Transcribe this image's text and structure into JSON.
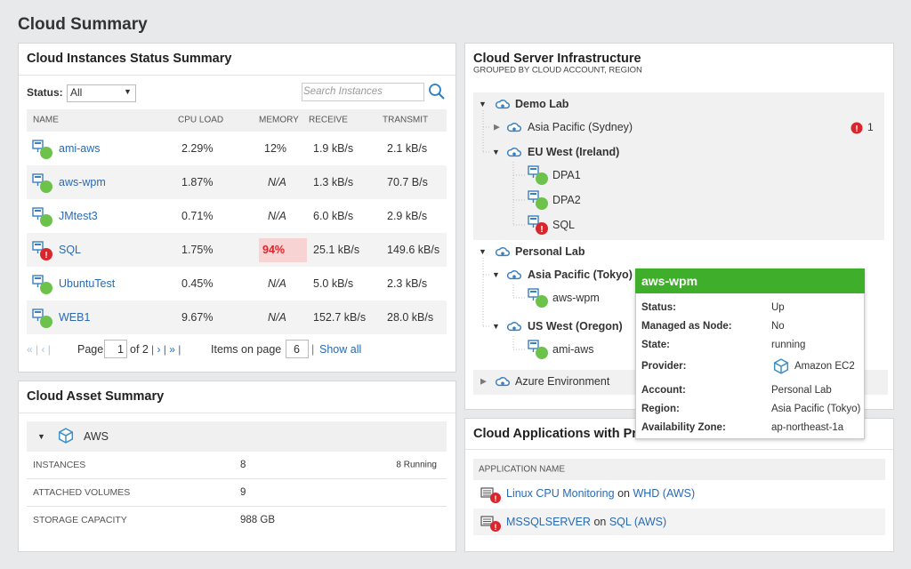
{
  "page_title": "Cloud Summary",
  "instances": {
    "title": "Cloud Instances Status Summary",
    "status_label": "Status:",
    "status_value": "All",
    "search_placeholder": "Search Instances",
    "columns": [
      "NAME",
      "CPU LOAD",
      "MEMORY",
      "RECEIVE",
      "TRANSMIT"
    ],
    "rows": [
      [
        "ami-aws",
        "2.29%",
        "12%",
        "1.9 kB/s",
        "2.1 kB/s"
      ],
      [
        "aws-wpm",
        "1.87%",
        "N/A",
        "1.3 kB/s",
        "70.7 B/s"
      ],
      [
        "JMtest3",
        "0.71%",
        "N/A",
        "6.0 kB/s",
        "2.9 kB/s"
      ],
      [
        "SQL",
        "1.75%",
        "94%",
        "25.1 kB/s",
        "149.6 kB/s"
      ],
      [
        "UbuntuTest",
        "0.45%",
        "N/A",
        "5.0 kB/s",
        "2.3 kB/s"
      ],
      [
        "WEB1",
        "9.67%",
        "N/A",
        "152.7 kB/s",
        "28.0 kB/s"
      ]
    ],
    "pager": {
      "page_label": "Page",
      "page": "1",
      "of": "of 2",
      "items_label": "Items on page",
      "items": "6",
      "show_all": "Show all"
    }
  },
  "assets": {
    "title": "Cloud Asset Summary",
    "provider": "AWS",
    "rows": [
      {
        "label": "INSTANCES",
        "value": "8",
        "note": "8 Running"
      },
      {
        "label": "ATTACHED VOLUMES",
        "value": "9"
      },
      {
        "label": "STORAGE CAPACITY",
        "value": "988 GB"
      }
    ]
  },
  "infrastructure": {
    "title": "Cloud Server Infrastructure",
    "subtitle": "GROUPED BY CLOUD ACCOUNT, REGION",
    "nodes": [
      {
        "label": "Demo Lab"
      },
      {
        "label": "Asia Pacific (Sydney)",
        "badge": "1"
      },
      {
        "label": "EU West (Ireland)"
      },
      {
        "label": "DPA1"
      },
      {
        "label": "DPA2"
      },
      {
        "label": "SQL"
      },
      {
        "label": "Personal Lab"
      },
      {
        "label": "Asia Pacific (Tokyo)"
      },
      {
        "label": "aws-wpm"
      },
      {
        "label": "US West (Oregon)"
      },
      {
        "label": "ami-aws"
      },
      {
        "label": "Azure Environment"
      }
    ]
  },
  "tooltip": {
    "title": "aws-wpm",
    "fields": [
      [
        "Status:",
        "Up"
      ],
      [
        "Managed as Node:",
        "No"
      ],
      [
        "State:",
        "running"
      ],
      [
        "Provider:",
        "Amazon EC2"
      ],
      [
        "Account:",
        "Personal Lab"
      ],
      [
        "Region:",
        "Asia Pacific (Tokyo)"
      ],
      [
        "Availability Zone:",
        "ap-northeast-1a"
      ]
    ]
  },
  "applications": {
    "title": "Cloud Applications with Problems",
    "column": "APPLICATION NAME",
    "rows": [
      {
        "app": "Linux CPU Monitoring",
        "on": "on",
        "node": "WHD (AWS)"
      },
      {
        "app": "MSSQLSERVER",
        "on": "on",
        "node": "SQL (AWS)"
      }
    ]
  }
}
